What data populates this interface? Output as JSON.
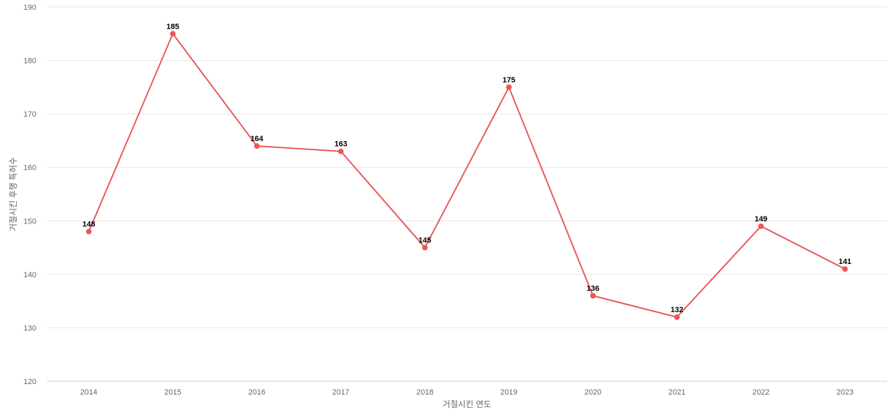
{
  "chart_data": {
    "type": "line",
    "title": "",
    "xlabel": "거절시킨 연도",
    "ylabel": "거절시킨 후행 특허수",
    "categories": [
      "2014",
      "2015",
      "2016",
      "2017",
      "2018",
      "2019",
      "2020",
      "2021",
      "2022",
      "2023"
    ],
    "series": [
      {
        "values": [
          148,
          185,
          164,
          163,
          145,
          175,
          136,
          132,
          149,
          141
        ],
        "color": "#e8585a"
      }
    ],
    "ylim": [
      120,
      190
    ],
    "yticks": [
      120,
      130,
      140,
      150,
      160,
      170,
      180,
      190
    ],
    "grid": true,
    "legend": "none",
    "data_labels": true
  }
}
